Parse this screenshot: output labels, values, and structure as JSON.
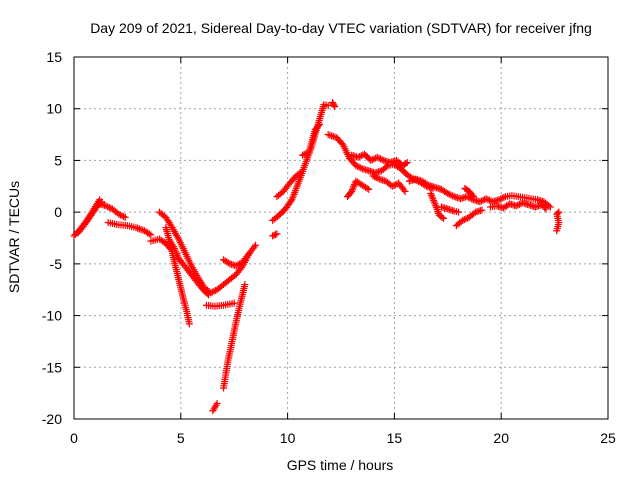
{
  "chart_data": {
    "type": "scatter",
    "title": "Day 209 of 2021, Sidereal Day-to-day VTEC variation (SDTVAR) for receiver jfng",
    "xlabel": "GPS time / hours",
    "ylabel": "SDTVAR / TECUs",
    "xlim": [
      0,
      25
    ],
    "ylim": [
      -20,
      15
    ],
    "xticks": [
      0,
      5,
      10,
      15,
      20,
      25
    ],
    "yticks": [
      -20,
      -15,
      -10,
      -5,
      0,
      5,
      10,
      15
    ],
    "grid": true,
    "marker": "+",
    "series": [
      {
        "name": "SDTVAR",
        "color": "#ff0000",
        "tracks": [
          [
            [
              0,
              -2.3
            ],
            [
              0.3,
              -1.6
            ],
            [
              0.6,
              -0.8
            ],
            [
              0.9,
              0.2
            ],
            [
              1.2,
              1.2
            ]
          ],
          [
            [
              0.2,
              -2.0
            ],
            [
              0.5,
              -1.2
            ],
            [
              0.8,
              -0.3
            ],
            [
              1.1,
              0.6
            ],
            [
              1.3,
              1.0
            ]
          ],
          [
            [
              1.2,
              0.8
            ],
            [
              1.5,
              0.6
            ],
            [
              1.8,
              0.3
            ],
            [
              2.1,
              -0.2
            ],
            [
              2.4,
              -0.5
            ]
          ],
          [
            [
              1.6,
              -1.0
            ],
            [
              2.0,
              -1.2
            ],
            [
              2.5,
              -1.3
            ],
            [
              2.9,
              -1.5
            ],
            [
              3.3,
              -1.8
            ],
            [
              3.6,
              -2.2
            ]
          ],
          [
            [
              3.6,
              -2.8
            ],
            [
              4.0,
              -2.6
            ],
            [
              4.3,
              -3.0
            ],
            [
              4.5,
              -3.5
            ]
          ],
          [
            [
              4.0,
              0.0
            ],
            [
              4.3,
              -0.5
            ],
            [
              4.6,
              -1.5
            ],
            [
              4.9,
              -2.6
            ],
            [
              5.2,
              -3.9
            ],
            [
              5.5,
              -5.2
            ],
            [
              5.8,
              -6.3
            ],
            [
              6.1,
              -7.3
            ],
            [
              6.4,
              -7.8
            ],
            [
              6.7,
              -7.5
            ],
            [
              7.0,
              -7.0
            ],
            [
              7.3,
              -6.5
            ],
            [
              7.6,
              -6.0
            ],
            [
              7.9,
              -5.2
            ],
            [
              8.2,
              -4.0
            ],
            [
              8.5,
              -3.2
            ]
          ],
          [
            [
              4.3,
              -1.5
            ],
            [
              4.5,
              -3.0
            ],
            [
              4.7,
              -4.8
            ],
            [
              4.9,
              -6.5
            ],
            [
              5.1,
              -8.2
            ],
            [
              5.3,
              -9.8
            ],
            [
              5.4,
              -10.8
            ]
          ],
          [
            [
              4.5,
              -2.8
            ],
            [
              4.7,
              -3.5
            ],
            [
              4.9,
              -4.5
            ],
            [
              5.1,
              -5.0
            ],
            [
              5.4,
              -5.8
            ],
            [
              5.7,
              -6.6
            ],
            [
              6.0,
              -7.4
            ],
            [
              6.3,
              -8.0
            ]
          ],
          [
            [
              6.2,
              -9.0
            ],
            [
              6.6,
              -9.1
            ],
            [
              7.0,
              -9.0
            ],
            [
              7.5,
              -8.8
            ]
          ],
          [
            [
              7.0,
              -17.0
            ],
            [
              7.2,
              -14.5
            ],
            [
              7.4,
              -12.5
            ],
            [
              7.6,
              -10.5
            ],
            [
              7.8,
              -8.7
            ],
            [
              8.0,
              -7.0
            ]
          ],
          [
            [
              6.5,
              -19.2
            ],
            [
              6.7,
              -18.5
            ]
          ],
          [
            [
              7.0,
              -4.6
            ],
            [
              7.3,
              -5.0
            ],
            [
              7.6,
              -5.2
            ],
            [
              7.9,
              -4.8
            ],
            [
              8.2,
              -4.0
            ]
          ],
          [
            [
              9.3,
              -2.3
            ],
            [
              9.5,
              -2.1
            ]
          ],
          [
            [
              9.3,
              -0.8
            ],
            [
              9.6,
              -0.3
            ],
            [
              9.9,
              0.3
            ],
            [
              10.2,
              1.2
            ],
            [
              10.5,
              2.8
            ],
            [
              10.8,
              4.5
            ],
            [
              11.1,
              6.2
            ],
            [
              11.4,
              8.3
            ],
            [
              11.7,
              10.4
            ],
            [
              11.9,
              10.3
            ]
          ],
          [
            [
              9.5,
              1.5
            ],
            [
              9.8,
              2.0
            ],
            [
              10.1,
              2.8
            ],
            [
              10.4,
              3.5
            ],
            [
              10.6,
              3.8
            ]
          ],
          [
            [
              10.7,
              5.5
            ],
            [
              11.0,
              5.8
            ],
            [
              11.3,
              8.0
            ],
            [
              11.5,
              8.5
            ]
          ],
          [
            [
              12.1,
              10.6
            ],
            [
              12.2,
              10.2
            ]
          ],
          [
            [
              11.9,
              7.5
            ],
            [
              12.3,
              7.2
            ],
            [
              12.6,
              6.5
            ],
            [
              12.9,
              5.2
            ],
            [
              13.2,
              4.5
            ],
            [
              13.5,
              4.2
            ],
            [
              13.8,
              4.0
            ],
            [
              14.1,
              3.8
            ],
            [
              14.4,
              4.0
            ],
            [
              14.7,
              4.5
            ],
            [
              15.0,
              4.6
            ],
            [
              15.3,
              4.2
            ],
            [
              15.6,
              3.6
            ],
            [
              15.9,
              3.2
            ],
            [
              16.2,
              2.9
            ],
            [
              16.5,
              2.5
            ],
            [
              16.8,
              2.3
            ]
          ],
          [
            [
              12.8,
              1.5
            ],
            [
              13.0,
              2.0
            ],
            [
              13.2,
              3.0
            ],
            [
              13.5,
              2.6
            ],
            [
              13.8,
              2.2
            ]
          ],
          [
            [
              13.0,
              5.5
            ],
            [
              13.3,
              5.3
            ],
            [
              13.6,
              5.6
            ],
            [
              13.9,
              5.0
            ],
            [
              14.2,
              5.3
            ],
            [
              14.5,
              5.0
            ],
            [
              14.8,
              4.8
            ],
            [
              15.1,
              5.0
            ],
            [
              15.4,
              4.5
            ],
            [
              15.6,
              4.8
            ]
          ],
          [
            [
              14.0,
              3.5
            ],
            [
              14.3,
              3.2
            ],
            [
              14.6,
              3.0
            ],
            [
              14.9,
              2.5
            ],
            [
              15.2,
              2.8
            ],
            [
              15.5,
              2.0
            ]
          ],
          [
            [
              15.7,
              3.0
            ],
            [
              16.0,
              3.2
            ],
            [
              16.3,
              3.0
            ],
            [
              16.6,
              2.6
            ],
            [
              16.9,
              2.4
            ],
            [
              17.2,
              2.2
            ]
          ],
          [
            [
              16.7,
              1.8
            ],
            [
              16.9,
              0.8
            ],
            [
              17.1,
              -0.3
            ],
            [
              17.3,
              -0.6
            ]
          ],
          [
            [
              17.2,
              0.5
            ],
            [
              17.5,
              0.3
            ],
            [
              17.8,
              0.1
            ],
            [
              18.0,
              0.0
            ]
          ],
          [
            [
              17.2,
              2.2
            ],
            [
              17.5,
              1.8
            ],
            [
              17.8,
              1.5
            ],
            [
              18.1,
              1.3
            ],
            [
              18.4,
              1.5
            ],
            [
              18.7,
              1.2
            ],
            [
              19.0,
              1.0
            ],
            [
              19.3,
              1.3
            ],
            [
              19.6,
              1.0
            ],
            [
              19.9,
              1.2
            ],
            [
              20.2,
              1.5
            ],
            [
              20.5,
              1.6
            ],
            [
              20.8,
              1.5
            ],
            [
              21.1,
              1.4
            ],
            [
              21.4,
              1.3
            ],
            [
              21.7,
              1.2
            ],
            [
              22.0,
              1.0
            ],
            [
              22.3,
              0.5
            ]
          ],
          [
            [
              17.9,
              -1.3
            ],
            [
              18.2,
              -0.8
            ],
            [
              18.5,
              -0.5
            ],
            [
              18.8,
              0.0
            ],
            [
              19.1,
              0.2
            ]
          ],
          [
            [
              18.3,
              2.3
            ],
            [
              18.5,
              2.0
            ],
            [
              18.7,
              1.5
            ]
          ],
          [
            [
              19.5,
              0.5
            ],
            [
              19.8,
              0.6
            ],
            [
              20.1,
              0.4
            ],
            [
              20.4,
              0.8
            ],
            [
              20.7,
              0.6
            ],
            [
              21.0,
              0.9
            ],
            [
              21.3,
              0.7
            ],
            [
              21.6,
              0.5
            ],
            [
              21.9,
              0.7
            ],
            [
              22.1,
              0.3
            ]
          ],
          [
            [
              22.6,
              -1.8
            ],
            [
              22.7,
              -1.0
            ],
            [
              22.6,
              -0.2
            ],
            [
              22.7,
              0.0
            ]
          ]
        ]
      }
    ]
  }
}
